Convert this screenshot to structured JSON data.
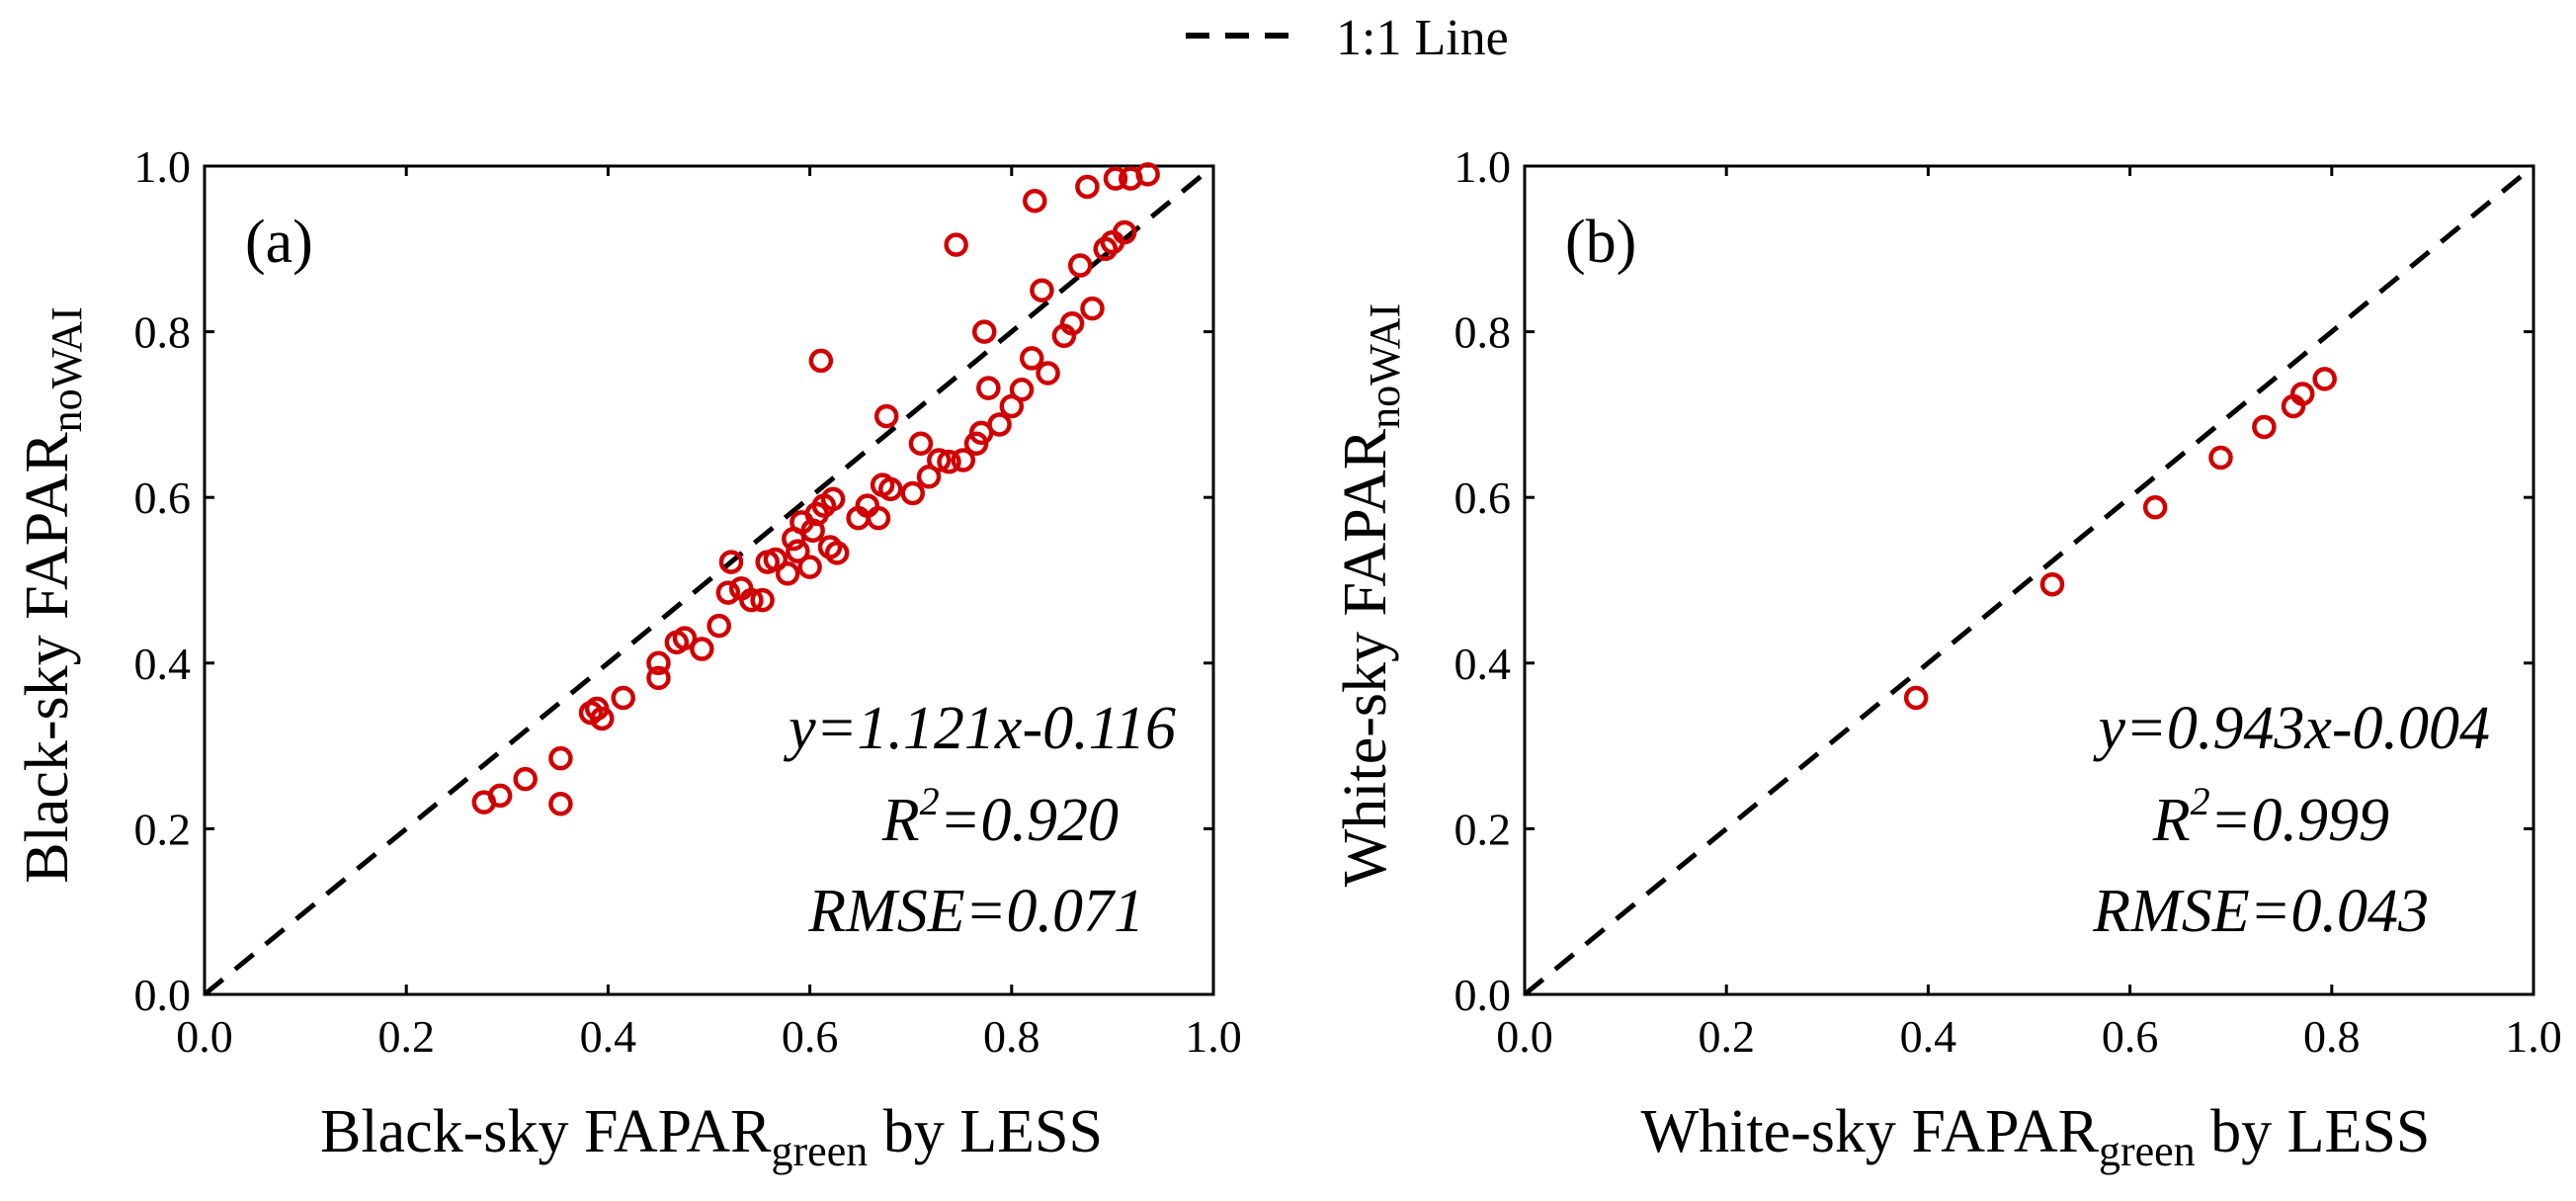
{
  "legend": {
    "line_label": "1:1 Line",
    "line_style": "dashed",
    "line_color": "#000000"
  },
  "marker_color": "#d00000",
  "chart_data": [
    {
      "type": "scatter",
      "panel_label": "(a)",
      "xlabel": {
        "main": "Black-sky FAPAR",
        "sub": "green",
        "suffix": " by LESS"
      },
      "ylabel": {
        "main": "Black-sky FAPAR",
        "sub": "noWAI"
      },
      "xlim": [
        0.0,
        1.0
      ],
      "ylim": [
        0.0,
        1.0
      ],
      "xticks": [
        "0.0",
        "0.2",
        "0.4",
        "0.6",
        "0.8",
        "1.0"
      ],
      "yticks": [
        "0.0",
        "0.2",
        "0.4",
        "0.6",
        "0.8",
        "1.0"
      ],
      "stats": {
        "equation": "y=1.121x-0.116",
        "r2_prefix": "R",
        "r2_sup": "2",
        "r2_value": "=0.920",
        "rmse": "RMSE=0.071"
      },
      "points": [
        [
          0.277,
          0.232
        ],
        [
          0.293,
          0.24
        ],
        [
          0.318,
          0.26
        ],
        [
          0.353,
          0.285
        ],
        [
          0.353,
          0.23
        ],
        [
          0.383,
          0.34
        ],
        [
          0.389,
          0.345
        ],
        [
          0.394,
          0.333
        ],
        [
          0.415,
          0.358
        ],
        [
          0.45,
          0.382
        ],
        [
          0.45,
          0.4
        ],
        [
          0.468,
          0.425
        ],
        [
          0.476,
          0.43
        ],
        [
          0.493,
          0.417
        ],
        [
          0.51,
          0.445
        ],
        [
          0.519,
          0.485
        ],
        [
          0.522,
          0.522
        ],
        [
          0.532,
          0.49
        ],
        [
          0.542,
          0.476
        ],
        [
          0.553,
          0.476
        ],
        [
          0.558,
          0.522
        ],
        [
          0.566,
          0.525
        ],
        [
          0.578,
          0.508
        ],
        [
          0.584,
          0.55
        ],
        [
          0.588,
          0.535
        ],
        [
          0.592,
          0.57
        ],
        [
          0.6,
          0.516
        ],
        [
          0.603,
          0.56
        ],
        [
          0.607,
          0.58
        ],
        [
          0.611,
          0.765
        ],
        [
          0.614,
          0.59
        ],
        [
          0.62,
          0.54
        ],
        [
          0.623,
          0.598
        ],
        [
          0.627,
          0.533
        ],
        [
          0.648,
          0.575
        ],
        [
          0.657,
          0.59
        ],
        [
          0.668,
          0.575
        ],
        [
          0.672,
          0.615
        ],
        [
          0.676,
          0.698
        ],
        [
          0.68,
          0.61
        ],
        [
          0.702,
          0.605
        ],
        [
          0.71,
          0.665
        ],
        [
          0.718,
          0.625
        ],
        [
          0.728,
          0.645
        ],
        [
          0.738,
          0.643
        ],
        [
          0.745,
          0.905
        ],
        [
          0.752,
          0.645
        ],
        [
          0.765,
          0.665
        ],
        [
          0.77,
          0.678
        ],
        [
          0.773,
          0.8
        ],
        [
          0.777,
          0.732
        ],
        [
          0.788,
          0.688
        ],
        [
          0.8,
          0.71
        ],
        [
          0.81,
          0.73
        ],
        [
          0.82,
          0.768
        ],
        [
          0.823,
          0.958
        ],
        [
          0.83,
          0.85
        ],
        [
          0.836,
          0.75
        ],
        [
          0.852,
          0.795
        ],
        [
          0.86,
          0.81
        ],
        [
          0.868,
          0.88
        ],
        [
          0.875,
          0.975
        ],
        [
          0.88,
          0.828
        ],
        [
          0.893,
          0.9
        ],
        [
          0.9,
          0.908
        ],
        [
          0.903,
          0.985
        ],
        [
          0.912,
          0.92
        ],
        [
          0.918,
          0.985
        ],
        [
          0.935,
          0.99
        ]
      ]
    },
    {
      "type": "scatter",
      "panel_label": "(b)",
      "xlabel": {
        "main": "White-sky FAPAR",
        "sub": "green",
        "suffix": " by LESS"
      },
      "ylabel": {
        "main": "White-sky FAPAR",
        "sub": "noWAI"
      },
      "xlim": [
        0.0,
        1.0
      ],
      "ylim": [
        0.0,
        1.0
      ],
      "xticks": [
        "0.0",
        "0.2",
        "0.4",
        "0.6",
        "0.8",
        "1.0"
      ],
      "yticks": [
        "0.0",
        "0.2",
        "0.4",
        "0.6",
        "0.8",
        "1.0"
      ],
      "stats": {
        "equation": "y=0.943x-0.004",
        "r2_prefix": "R",
        "r2_sup": "2",
        "r2_value": "=0.999",
        "rmse": "RMSE=0.043"
      },
      "points": [
        [
          0.388,
          0.358
        ],
        [
          0.523,
          0.495
        ],
        [
          0.625,
          0.588
        ],
        [
          0.69,
          0.648
        ],
        [
          0.733,
          0.685
        ],
        [
          0.762,
          0.71
        ],
        [
          0.771,
          0.725
        ],
        [
          0.793,
          0.743
        ]
      ]
    }
  ]
}
